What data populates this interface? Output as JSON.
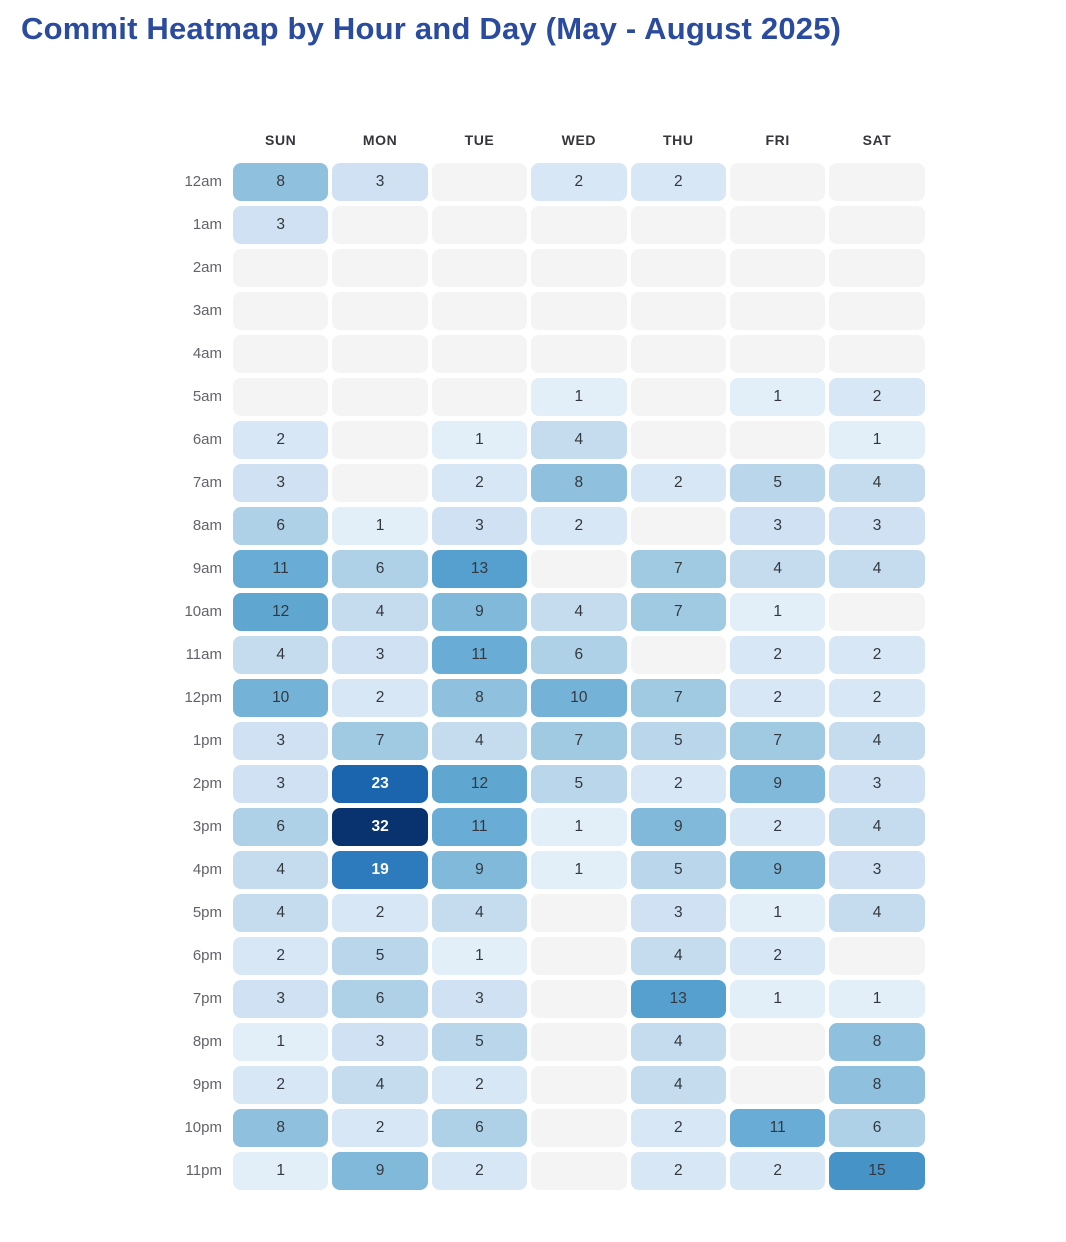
{
  "title": "Commit Heatmap by Hour and Day (May - August 2025)",
  "colors": {
    "title_text": "#2b4c9e",
    "empty_cell": "#f4f4f5",
    "cell_text_dark": "#34383e",
    "cell_text_light": "#ffffff",
    "row_label": "#63636b",
    "day_header": "#35353b"
  },
  "chart_data": {
    "type": "heatmap",
    "title": "Commit Heatmap by Hour and Day (May - August 2025)",
    "xlabel": "",
    "ylabel": "",
    "legend": "none",
    "columns": [
      "SUN",
      "MON",
      "TUE",
      "WED",
      "THU",
      "FRI",
      "SAT"
    ],
    "rows": [
      "12am",
      "1am",
      "2am",
      "3am",
      "4am",
      "5am",
      "6am",
      "7am",
      "8am",
      "9am",
      "10am",
      "11am",
      "12pm",
      "1pm",
      "2pm",
      "3pm",
      "4pm",
      "5pm",
      "6pm",
      "7pm",
      "8pm",
      "9pm",
      "10pm",
      "11pm"
    ],
    "values": [
      [
        8,
        3,
        null,
        2,
        2,
        null,
        null
      ],
      [
        3,
        null,
        null,
        null,
        null,
        null,
        null
      ],
      [
        null,
        null,
        null,
        null,
        null,
        null,
        null
      ],
      [
        null,
        null,
        null,
        null,
        null,
        null,
        null
      ],
      [
        null,
        null,
        null,
        null,
        null,
        null,
        null
      ],
      [
        null,
        null,
        null,
        1,
        null,
        1,
        2
      ],
      [
        2,
        null,
        1,
        4,
        null,
        null,
        1
      ],
      [
        3,
        null,
        2,
        8,
        2,
        5,
        4
      ],
      [
        6,
        1,
        3,
        2,
        null,
        3,
        3
      ],
      [
        11,
        6,
        13,
        null,
        7,
        4,
        4
      ],
      [
        12,
        4,
        9,
        4,
        7,
        1,
        null
      ],
      [
        4,
        3,
        11,
        6,
        null,
        2,
        2
      ],
      [
        10,
        2,
        8,
        10,
        7,
        2,
        2
      ],
      [
        3,
        7,
        4,
        7,
        5,
        7,
        4
      ],
      [
        3,
        23,
        12,
        5,
        2,
        9,
        3
      ],
      [
        6,
        32,
        11,
        1,
        9,
        2,
        4
      ],
      [
        4,
        19,
        9,
        1,
        5,
        9,
        3
      ],
      [
        4,
        2,
        4,
        null,
        3,
        1,
        4
      ],
      [
        2,
        5,
        1,
        null,
        4,
        2,
        null
      ],
      [
        3,
        6,
        3,
        null,
        13,
        1,
        1
      ],
      [
        1,
        3,
        5,
        null,
        4,
        null,
        8
      ],
      [
        2,
        4,
        2,
        null,
        4,
        null,
        8
      ],
      [
        8,
        2,
        6,
        null,
        2,
        11,
        6
      ],
      [
        1,
        9,
        2,
        null,
        2,
        2,
        15
      ]
    ],
    "value_range": [
      0,
      32
    ],
    "color_scale": {
      "empty": "#f4f4f5",
      "white_text_min": 16,
      "map": {
        "1": "#e2eef8",
        "2": "#d8e7f5",
        "3": "#cfe1f2",
        "4": "#c5dcef",
        "5": "#b9d6ea",
        "6": "#aed1e7",
        "7": "#a0c9e2",
        "8": "#8fc1de",
        "9": "#80b9da",
        "10": "#74b3d7",
        "11": "#69acd5",
        "12": "#5fa6d1",
        "13": "#55a0ce",
        "15": "#4593c7",
        "19": "#2d7abc",
        "23": "#1a65ad",
        "32": "#09336e"
      }
    }
  }
}
